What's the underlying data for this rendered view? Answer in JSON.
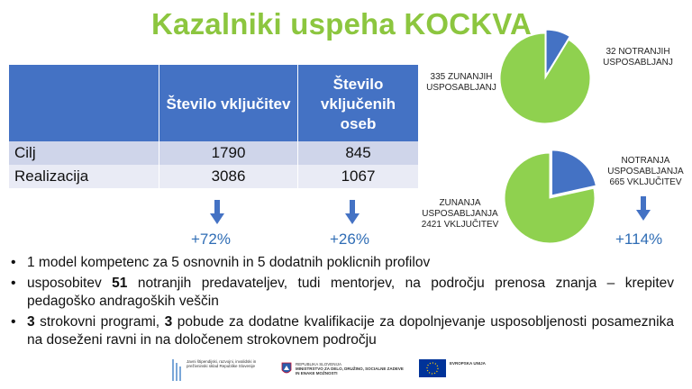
{
  "title": "Kazalniki uspeha KOCKVA",
  "table": {
    "headers": [
      "",
      "Število vključitev",
      "Število vključenih oseb"
    ],
    "rows": [
      {
        "label": "Cilj",
        "values": [
          "1790",
          "845"
        ]
      },
      {
        "label": "Realizacija",
        "values": [
          "3086",
          "1067"
        ]
      }
    ],
    "changes": [
      "+72%",
      "+26%"
    ]
  },
  "pie_top": {
    "external_label": "335 ZUNANJIH USPOSABLJANJ",
    "internal_label": "32 NOTRANJIH USPOSABLJANJ",
    "external_value": 335,
    "internal_value": 32
  },
  "pie_bottom": {
    "external_label": "ZUNANJA USPOSABLJANJA 2421 VKLJUČITEV",
    "internal_label": "NOTRANJA USPOSABLJANJA 665 VKLJUČITEV",
    "external_value": 2421,
    "internal_value": 665,
    "change": "+114%"
  },
  "colors": {
    "title": "#8cc63f",
    "header": "#4472c4",
    "row_odd": "#cfd5ea",
    "row_even": "#e9ebf5",
    "pie_green": "#8fd14f",
    "pie_blue": "#4472c4",
    "pct": "#2f6db5"
  },
  "bullets": [
    {
      "bold_lead": "",
      "text": "1 model kompetenc za 5 osnovnih in 5 dodatnih poklicnih profilov"
    },
    {
      "bold_lead": "",
      "text_pre": "usposobitev ",
      "bold": "51",
      "text_post": " notranjih predavateljev, tudi mentorjev, na področju prenosa znanja – krepitev pedagoško andragoških veščin"
    },
    {
      "text_pre": "",
      "bold": "3",
      "text_mid": " strokovni programi, ",
      "bold2": "3",
      "text_post": " pobude za dodatne kvalifikacije za dopolnjevanje usposobljenosti posameznika na doseženi ravni in na določenem strokovnem področju"
    }
  ],
  "footer": {
    "logo1": "Javni štipendijski, razvojni, invalidski in preživninski sklad Republike Slovenije",
    "logo2_country": "REPUBLIKA SLOVENIJA",
    "logo2_ministry": "MINISTRSTVO ZA DELO, DRUŽINO, SOCIALNE ZADEVE IN ENAKE MOŽNOSTI",
    "logo3": "EVROPSKA UNIJA"
  }
}
